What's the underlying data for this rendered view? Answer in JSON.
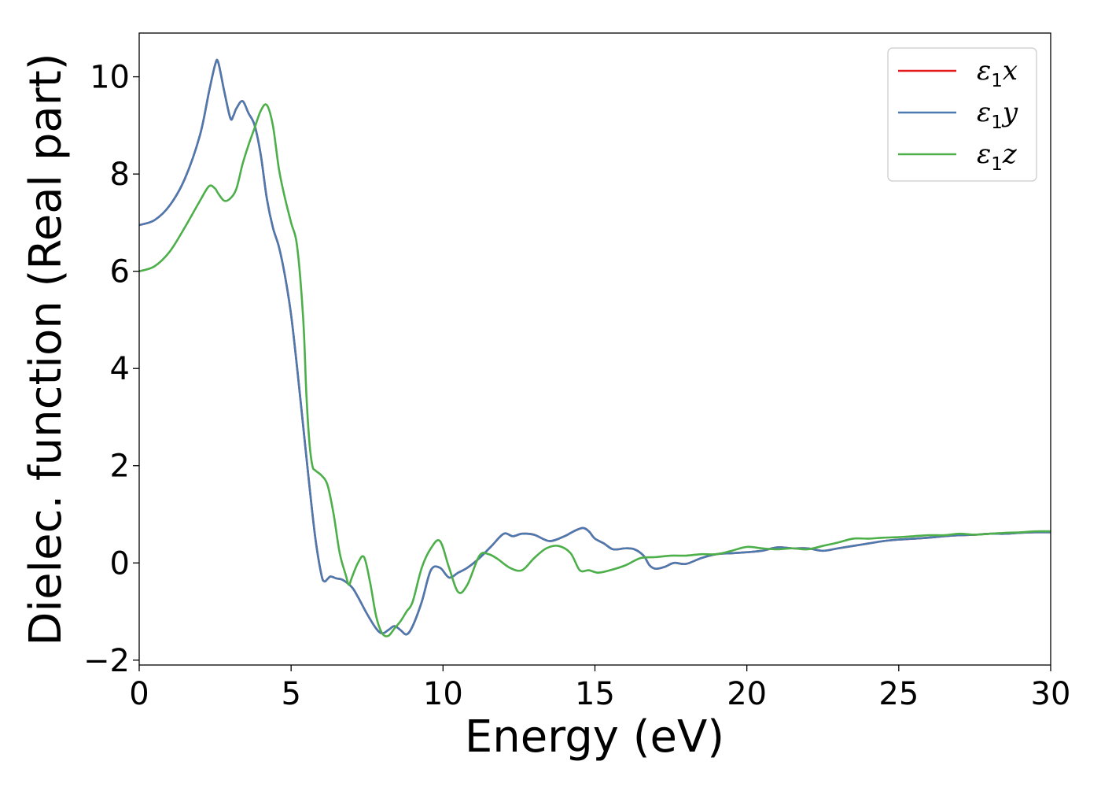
{
  "chart_data": {
    "type": "line",
    "title": "",
    "xlabel": "Energy (eV)",
    "ylabel": "Dielec. function (Real part)",
    "xlim": [
      0,
      30
    ],
    "ylim": [
      -2.1,
      10.9
    ],
    "xticks": [
      0,
      5,
      10,
      15,
      20,
      25,
      30
    ],
    "xtick_labels": [
      "0",
      "5",
      "10",
      "15",
      "20",
      "25",
      "30"
    ],
    "yticks": [
      -2,
      0,
      2,
      4,
      6,
      8,
      10
    ],
    "ytick_labels": [
      "−2",
      "0",
      "2",
      "4",
      "6",
      "8",
      "10"
    ],
    "grid": false,
    "legend_position": "top-right",
    "series": [
      {
        "name": "ε1x",
        "legend_main": "ε",
        "legend_sub": "1",
        "legend_tail": "x",
        "color": "#e41a1c",
        "x": [
          0,
          0.5,
          1,
          1.5,
          2,
          2.3,
          2.5,
          2.6,
          2.8,
          3.0,
          3.1,
          3.2,
          3.4,
          3.6,
          3.8,
          4.0,
          4.2,
          4.4,
          4.6,
          4.8,
          5.0,
          5.2,
          5.4,
          5.6,
          5.8,
          6.0,
          6.1,
          6.2,
          6.3,
          6.5,
          6.7,
          7.0,
          7.2,
          7.5,
          7.8,
          8.0,
          8.2,
          8.4,
          8.6,
          8.8,
          9.0,
          9.3,
          9.6,
          9.9,
          10.2,
          10.5,
          10.8,
          11.2,
          11.6,
          12.0,
          12.3,
          12.6,
          13.0,
          13.5,
          14.0,
          14.3,
          14.6,
          14.8,
          15.0,
          15.3,
          15.6,
          16.0,
          16.3,
          16.6,
          16.8,
          17.0,
          17.3,
          17.6,
          18.0,
          18.5,
          19.0,
          19.5,
          20.0,
          20.5,
          21.0,
          21.5,
          22.0,
          22.5,
          23.0,
          23.5,
          24.0,
          24.5,
          25.0,
          25.5,
          26.0,
          26.5,
          27.0,
          27.5,
          28.0,
          28.5,
          29.0,
          29.5,
          30.0
        ],
        "y": [
          6.95,
          7.05,
          7.35,
          7.9,
          8.8,
          9.7,
          10.25,
          10.3,
          9.7,
          9.15,
          9.2,
          9.35,
          9.5,
          9.25,
          9.0,
          8.4,
          7.5,
          6.9,
          6.5,
          5.9,
          5.1,
          4.0,
          2.8,
          1.6,
          0.5,
          -0.25,
          -0.38,
          -0.33,
          -0.28,
          -0.32,
          -0.35,
          -0.5,
          -0.7,
          -1.05,
          -1.35,
          -1.45,
          -1.38,
          -1.3,
          -1.38,
          -1.47,
          -1.3,
          -0.8,
          -0.15,
          -0.1,
          -0.3,
          -0.2,
          -0.1,
          0.1,
          0.35,
          0.6,
          0.55,
          0.6,
          0.58,
          0.45,
          0.55,
          0.65,
          0.72,
          0.65,
          0.5,
          0.4,
          0.28,
          0.3,
          0.28,
          0.15,
          -0.05,
          -0.12,
          -0.08,
          0.0,
          -0.02,
          0.1,
          0.18,
          0.2,
          0.22,
          0.25,
          0.32,
          0.3,
          0.3,
          0.25,
          0.3,
          0.35,
          0.4,
          0.45,
          0.48,
          0.5,
          0.52,
          0.55,
          0.57,
          0.58,
          0.6,
          0.6,
          0.62,
          0.63,
          0.63
        ]
      },
      {
        "name": "ε1y",
        "legend_main": "ε",
        "legend_sub": "1",
        "legend_tail": "y",
        "color": "#4a7ab0",
        "x": [
          0,
          0.5,
          1,
          1.5,
          2,
          2.3,
          2.5,
          2.6,
          2.8,
          3.0,
          3.1,
          3.2,
          3.4,
          3.6,
          3.8,
          4.0,
          4.2,
          4.4,
          4.6,
          4.8,
          5.0,
          5.2,
          5.4,
          5.6,
          5.8,
          6.0,
          6.1,
          6.2,
          6.3,
          6.5,
          6.7,
          7.0,
          7.2,
          7.5,
          7.8,
          8.0,
          8.2,
          8.4,
          8.6,
          8.8,
          9.0,
          9.3,
          9.6,
          9.9,
          10.2,
          10.5,
          10.8,
          11.2,
          11.6,
          12.0,
          12.3,
          12.6,
          13.0,
          13.5,
          14.0,
          14.3,
          14.6,
          14.8,
          15.0,
          15.3,
          15.6,
          16.0,
          16.3,
          16.6,
          16.8,
          17.0,
          17.3,
          17.6,
          18.0,
          18.5,
          19.0,
          19.5,
          20.0,
          20.5,
          21.0,
          21.5,
          22.0,
          22.5,
          23.0,
          23.5,
          24.0,
          24.5,
          25.0,
          25.5,
          26.0,
          26.5,
          27.0,
          27.5,
          28.0,
          28.5,
          29.0,
          29.5,
          30.0
        ],
        "y": [
          6.95,
          7.05,
          7.35,
          7.9,
          8.8,
          9.7,
          10.25,
          10.3,
          9.7,
          9.15,
          9.2,
          9.35,
          9.5,
          9.25,
          9.0,
          8.4,
          7.5,
          6.9,
          6.5,
          5.9,
          5.1,
          4.0,
          2.8,
          1.6,
          0.5,
          -0.25,
          -0.38,
          -0.33,
          -0.28,
          -0.32,
          -0.35,
          -0.5,
          -0.7,
          -1.05,
          -1.35,
          -1.45,
          -1.38,
          -1.3,
          -1.38,
          -1.47,
          -1.3,
          -0.8,
          -0.15,
          -0.1,
          -0.3,
          -0.2,
          -0.1,
          0.1,
          0.35,
          0.6,
          0.55,
          0.6,
          0.58,
          0.45,
          0.55,
          0.65,
          0.72,
          0.65,
          0.5,
          0.4,
          0.28,
          0.3,
          0.28,
          0.15,
          -0.05,
          -0.12,
          -0.08,
          0.0,
          -0.02,
          0.1,
          0.18,
          0.2,
          0.22,
          0.25,
          0.32,
          0.3,
          0.3,
          0.25,
          0.3,
          0.35,
          0.4,
          0.45,
          0.48,
          0.5,
          0.52,
          0.55,
          0.57,
          0.58,
          0.6,
          0.6,
          0.62,
          0.63,
          0.63
        ]
      },
      {
        "name": "ε1z",
        "legend_main": "ε",
        "legend_sub": "1",
        "legend_tail": "z",
        "color": "#4daf4a",
        "x": [
          0,
          0.5,
          1,
          1.5,
          2,
          2.3,
          2.5,
          2.6,
          2.8,
          3.0,
          3.2,
          3.4,
          3.6,
          3.8,
          4.0,
          4.2,
          4.4,
          4.6,
          4.8,
          5.0,
          5.2,
          5.4,
          5.5,
          5.6,
          5.7,
          5.8,
          6.0,
          6.2,
          6.4,
          6.6,
          6.8,
          6.9,
          7.0,
          7.2,
          7.4,
          7.6,
          7.8,
          8.0,
          8.2,
          8.4,
          8.6,
          8.8,
          9.0,
          9.3,
          9.6,
          9.9,
          10.2,
          10.5,
          10.8,
          11.2,
          11.5,
          11.8,
          12.2,
          12.6,
          13.0,
          13.4,
          13.8,
          14.2,
          14.5,
          14.8,
          15.1,
          15.5,
          16.0,
          16.5,
          17.0,
          17.5,
          18.0,
          18.5,
          19.0,
          19.5,
          20.0,
          20.5,
          21.0,
          21.5,
          22.0,
          22.5,
          23.0,
          23.5,
          24.0,
          24.5,
          25.0,
          25.5,
          26.0,
          26.5,
          27.0,
          27.5,
          28.0,
          28.5,
          29.0,
          29.5,
          30.0
        ],
        "y": [
          6.0,
          6.1,
          6.4,
          6.9,
          7.45,
          7.75,
          7.7,
          7.6,
          7.45,
          7.5,
          7.7,
          8.2,
          8.6,
          8.95,
          9.3,
          9.42,
          9.0,
          8.1,
          7.5,
          7.0,
          6.5,
          5.0,
          3.5,
          2.5,
          2.0,
          1.9,
          1.8,
          1.6,
          1.0,
          0.2,
          -0.25,
          -0.45,
          -0.3,
          0.0,
          0.12,
          -0.4,
          -1.1,
          -1.45,
          -1.5,
          -1.35,
          -1.2,
          -1.0,
          -0.8,
          -0.1,
          0.3,
          0.45,
          -0.1,
          -0.6,
          -0.45,
          0.15,
          0.18,
          0.08,
          -0.1,
          -0.15,
          0.1,
          0.3,
          0.35,
          0.2,
          -0.15,
          -0.15,
          -0.2,
          -0.15,
          -0.05,
          0.1,
          0.12,
          0.15,
          0.15,
          0.18,
          0.18,
          0.25,
          0.33,
          0.3,
          0.28,
          0.3,
          0.28,
          0.35,
          0.42,
          0.5,
          0.5,
          0.52,
          0.53,
          0.55,
          0.57,
          0.57,
          0.6,
          0.58,
          0.6,
          0.62,
          0.63,
          0.65,
          0.65
        ]
      }
    ]
  }
}
